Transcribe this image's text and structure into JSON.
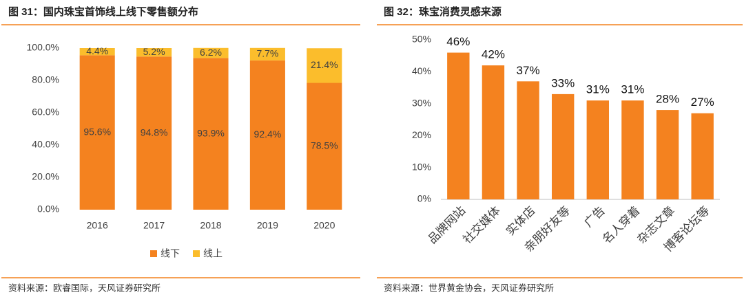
{
  "chart_data": [
    {
      "type": "stacked_bar",
      "title": "图 31：国内珠宝首饰线上线下零售额分布",
      "categories": [
        "2016",
        "2017",
        "2018",
        "2019",
        "2020"
      ],
      "series": [
        {
          "name": "线下",
          "color": "#f4821f",
          "values": [
            95.6,
            94.8,
            93.9,
            92.4,
            78.5
          ],
          "value_labels": [
            "95.6%",
            "94.8%",
            "93.9%",
            "92.4%",
            "78.5%"
          ]
        },
        {
          "name": "线上",
          "color": "#fbbd2c",
          "values": [
            4.4,
            5.2,
            6.2,
            7.7,
            21.4
          ],
          "value_labels": [
            "4.4%",
            "5.2%",
            "6.2%",
            "7.7%",
            "21.4%"
          ]
        }
      ],
      "ylim": [
        0,
        100
      ],
      "yticks": [
        {
          "value": 0,
          "label": "0.0%"
        },
        {
          "value": 20,
          "label": "20.0%"
        },
        {
          "value": 40,
          "label": "40.0%"
        },
        {
          "value": 60,
          "label": "60.0%"
        },
        {
          "value": 80,
          "label": "80.0%"
        },
        {
          "value": 100,
          "label": "100.0%"
        }
      ],
      "legend": "bottom",
      "source": "资料来源：欧睿国际，天风证券研究所"
    },
    {
      "type": "bar",
      "title": "图 32：珠宝消费灵感来源",
      "categories": [
        "品牌网站",
        "社交媒体",
        "实体店",
        "亲朋好友等",
        "广告",
        "名人穿着",
        "杂志文章",
        "博客论坛等"
      ],
      "values": [
        46,
        42,
        37,
        33,
        31,
        31,
        28,
        27
      ],
      "value_labels": [
        "46%",
        "42%",
        "37%",
        "33%",
        "31%",
        "31%",
        "28%",
        "27%"
      ],
      "color": "#f4821f",
      "ylim": [
        0,
        50
      ],
      "yticks": [
        {
          "value": 0,
          "label": "0%"
        },
        {
          "value": 10,
          "label": "10%"
        },
        {
          "value": 20,
          "label": "20%"
        },
        {
          "value": 30,
          "label": "30%"
        },
        {
          "value": 40,
          "label": "40%"
        },
        {
          "value": 50,
          "label": "50%"
        }
      ],
      "source": "资料来源：世界黄金协会，天风证券研究所"
    }
  ]
}
